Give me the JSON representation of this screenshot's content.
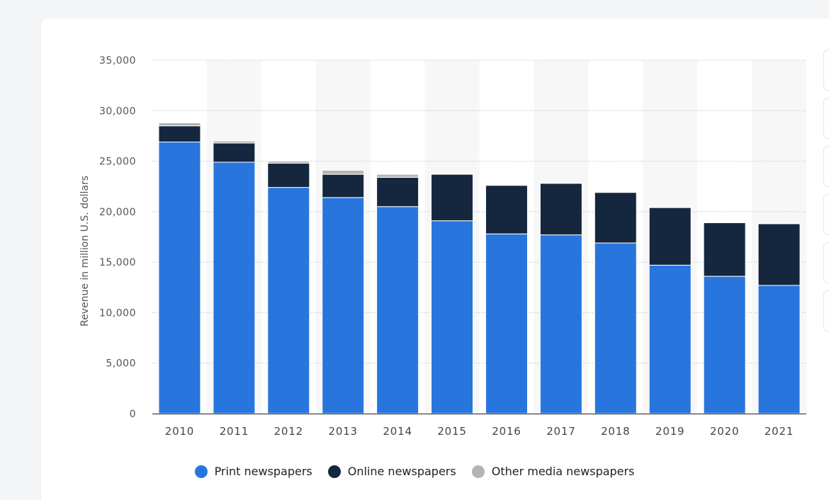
{
  "chart_data": {
    "type": "bar",
    "stacked": true,
    "categories": [
      "2010",
      "2011",
      "2012",
      "2013",
      "2014",
      "2015",
      "2016",
      "2017",
      "2018",
      "2019",
      "2020",
      "2021"
    ],
    "series": [
      {
        "name": "Print newspapers",
        "color": "#2876dd",
        "values": [
          26900,
          24900,
          22400,
          21400,
          20500,
          19100,
          17800,
          17700,
          16900,
          14700,
          13600,
          12700
        ]
      },
      {
        "name": "Online newspapers",
        "color": "#14273e",
        "values": [
          1600,
          1900,
          2400,
          2300,
          2900,
          4600,
          4800,
          5100,
          5000,
          5700,
          5300,
          6100
        ]
      },
      {
        "name": "Other media newspapers",
        "color": "#b4b4b4",
        "values": [
          300,
          200,
          200,
          400,
          300,
          0,
          0,
          0,
          0,
          0,
          0,
          0
        ]
      }
    ],
    "ylabel": "Revenue in million U.S. dollars",
    "ylim": [
      0,
      35000
    ],
    "yticks": [
      0,
      5000,
      10000,
      15000,
      20000,
      25000,
      30000,
      35000
    ],
    "ytick_labels": [
      "0",
      "5,000",
      "10,000",
      "15,000",
      "20,000",
      "25,000",
      "30,000",
      "35,000"
    ],
    "grid": true,
    "legend_position": "bottom"
  }
}
